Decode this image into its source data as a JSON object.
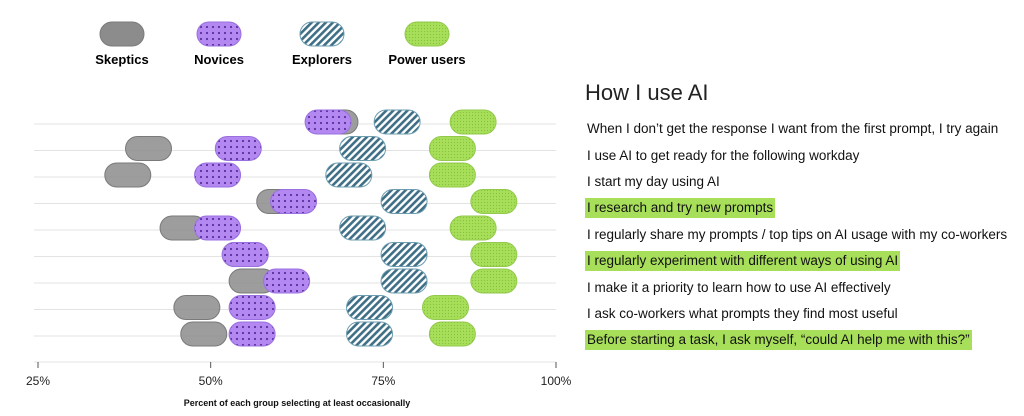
{
  "chart_data": {
    "type": "dot-range",
    "legend": [
      {
        "name": "Skeptics",
        "color": "#8c8c8c",
        "pattern": "solid"
      },
      {
        "name": "Novices",
        "color": "#b388f0",
        "pattern": "dots"
      },
      {
        "name": "Explorers",
        "color": "#a9d5e3",
        "pattern": "stripes"
      },
      {
        "name": "Power users",
        "color": "#a8df5a",
        "pattern": "dots-green"
      }
    ],
    "xlabel": "Percent of each group selecting at least occasionally",
    "xlim": [
      25,
      100
    ],
    "xticks": [
      25,
      50,
      75,
      100
    ],
    "xtick_labels": [
      "25%",
      "50%",
      "75%",
      "100%"
    ],
    "title": "How I use AI",
    "categories": [
      "When I don’t get the response I want from the first prompt, I try again",
      "I use AI to get ready for the following workday",
      "I start my day using AI",
      "I research and try new prompts",
      "I regularly share my prompts / top tips on AI usage with my co-workers",
      "I regularly experiment with different ways of using AI",
      "I make it a priority to learn how to use AI effectively",
      "I ask co-workers what prompts they find most useful",
      "Before starting a task, I ask myself, “could AI help me with this?”"
    ],
    "highlighted": [
      false,
      false,
      false,
      true,
      false,
      true,
      false,
      false,
      true
    ],
    "series": [
      {
        "name": "Skeptics",
        "values": [
          68,
          41,
          38,
          60,
          46,
          55,
          56,
          48,
          49
        ]
      },
      {
        "name": "Novices",
        "values": [
          67,
          54,
          51,
          62,
          51,
          55,
          61,
          56,
          56
        ]
      },
      {
        "name": "Explorers",
        "values": [
          77,
          72,
          70,
          78,
          72,
          78,
          78,
          73,
          73
        ]
      },
      {
        "name": "Power users",
        "values": [
          88,
          85,
          85,
          91,
          88,
          91,
          91,
          84,
          85
        ]
      }
    ]
  }
}
